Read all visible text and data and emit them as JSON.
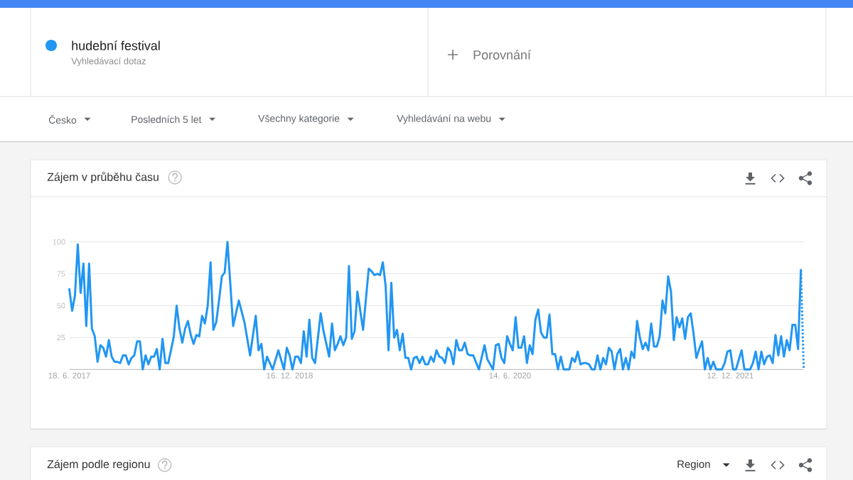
{
  "chart_data": {
    "type": "line",
    "title": "Zájem v průběhu času",
    "annotations": [
      "Vyhledávací dotaz",
      "Porovnání",
      "Česko",
      "Posledních 5 let",
      "Všechny kategorie",
      "Vyhledávání na webu",
      "Zájem podle regionu",
      "Region"
    ],
    "series": [
      {
        "name": "hudební festival",
        "color": "#2196f3",
        "x": [
          "2017-06-18",
          "2017-06-25",
          "2017-07-02",
          "2017-07-09",
          "2017-07-16",
          "2017-07-23",
          "2017-07-30",
          "2017-08-06",
          "2017-08-13",
          "2017-08-20",
          "2017-08-27",
          "2017-09-03",
          "2017-09-10",
          "2017-09-17",
          "2017-09-24",
          "2017-10-01",
          "2017-10-08",
          "2017-10-15",
          "2017-10-22",
          "2017-10-29",
          "2017-11-05",
          "2017-11-12",
          "2017-11-19",
          "2017-11-26",
          "2017-12-03",
          "2017-12-10",
          "2017-12-17",
          "2017-12-24",
          "2017-12-31",
          "2018-01-07",
          "2018-01-14",
          "2018-01-21",
          "2018-01-28",
          "2018-02-04",
          "2018-02-11",
          "2018-02-18",
          "2018-02-25",
          "2018-03-04",
          "2018-03-11",
          "2018-03-18",
          "2018-03-25",
          "2018-04-01",
          "2018-04-08",
          "2018-04-15",
          "2018-04-22",
          "2018-04-29",
          "2018-05-06",
          "2018-05-13",
          "2018-05-20",
          "2018-05-27",
          "2018-06-03",
          "2018-06-10",
          "2018-06-17",
          "2018-06-24",
          "2018-07-01",
          "2018-07-08",
          "2018-07-15",
          "2018-07-29",
          "2018-08-12",
          "2018-08-26",
          "2018-09-09",
          "2018-09-23",
          "2018-09-30",
          "2018-10-07",
          "2018-10-14",
          "2018-10-21",
          "2018-11-04",
          "2018-11-18",
          "2018-12-02",
          "2018-12-09",
          "2018-12-16",
          "2018-12-23",
          "2018-12-30",
          "2019-01-06",
          "2019-01-13",
          "2019-01-20",
          "2019-01-27",
          "2019-02-03",
          "2019-02-10",
          "2019-02-17",
          "2019-03-03",
          "2019-03-10",
          "2019-03-24",
          "2019-03-31",
          "2019-04-07",
          "2019-04-14",
          "2019-04-21",
          "2019-04-28",
          "2019-05-05",
          "2019-05-12",
          "2019-05-19",
          "2019-05-26",
          "2019-06-02",
          "2019-06-16",
          "2019-06-30",
          "2019-07-07",
          "2019-07-14",
          "2019-07-21",
          "2019-07-28",
          "2019-08-04",
          "2019-08-11",
          "2019-08-18",
          "2019-08-25",
          "2019-09-01",
          "2019-09-08",
          "2019-09-15",
          "2019-09-22",
          "2019-09-29",
          "2019-10-06",
          "2019-10-13",
          "2019-10-20",
          "2019-10-27",
          "2019-11-03",
          "2019-11-10",
          "2019-11-17",
          "2019-11-24",
          "2019-12-01",
          "2019-12-08",
          "2019-12-15",
          "2019-12-22",
          "2019-12-29",
          "2020-01-05",
          "2020-01-12",
          "2020-01-19",
          "2020-01-26",
          "2020-02-02",
          "2020-02-09",
          "2020-02-16",
          "2020-02-23",
          "2020-03-01",
          "2020-03-08",
          "2020-03-15",
          "2020-03-29",
          "2020-04-12",
          "2020-04-19",
          "2020-04-26",
          "2020-05-03",
          "2020-05-10",
          "2020-05-17",
          "2020-05-24",
          "2020-05-31",
          "2020-06-07",
          "2020-06-14",
          "2020-06-21",
          "2020-06-28",
          "2020-07-05",
          "2020-07-12",
          "2020-07-19",
          "2020-07-26",
          "2020-08-02",
          "2020-08-09",
          "2020-08-16",
          "2020-08-23",
          "2020-08-30",
          "2020-09-06",
          "2020-09-13",
          "2020-09-20",
          "2020-09-27",
          "2020-10-04",
          "2020-10-11",
          "2020-10-18",
          "2020-10-25",
          "2020-11-01",
          "2020-11-08",
          "2020-11-15",
          "2020-11-22",
          "2020-11-29",
          "2020-12-06",
          "2020-12-13",
          "2020-12-20",
          "2020-12-27",
          "2021-01-03",
          "2021-01-10",
          "2021-01-17",
          "2021-01-24",
          "2021-01-31",
          "2021-02-07",
          "2021-02-14",
          "2021-02-21",
          "2021-02-28",
          "2021-03-07",
          "2021-03-14",
          "2021-03-21",
          "2021-03-28",
          "2021-04-04",
          "2021-04-11",
          "2021-04-18",
          "2021-04-25",
          "2021-05-02",
          "2021-05-09",
          "2021-05-16",
          "2021-05-23",
          "2021-05-30",
          "2021-06-06",
          "2021-06-13",
          "2021-06-20",
          "2021-06-27",
          "2021-07-04",
          "2021-07-11",
          "2021-07-18",
          "2021-07-25",
          "2021-08-01",
          "2021-08-08",
          "2021-08-15",
          "2021-08-22",
          "2021-08-29",
          "2021-09-05",
          "2021-09-12",
          "2021-09-19",
          "2021-09-26",
          "2021-10-03",
          "2021-10-10",
          "2021-10-17",
          "2021-10-24",
          "2021-10-31",
          "2021-11-07",
          "2021-11-14",
          "2021-11-21",
          "2021-11-28",
          "2021-12-05",
          "2021-12-12",
          "2021-12-19",
          "2021-12-26",
          "2022-01-09",
          "2022-01-16",
          "2022-01-23",
          "2022-01-30",
          "2022-02-06",
          "2022-02-13",
          "2022-02-20",
          "2022-02-27",
          "2022-03-06",
          "2022-03-13",
          "2022-03-20",
          "2022-03-27",
          "2022-04-03",
          "2022-04-10",
          "2022-04-17",
          "2022-04-24",
          "2022-05-01",
          "2022-05-08",
          "2022-05-15",
          "2022-05-22",
          "2022-05-29",
          "2022-06-05"
        ],
        "values": [
          63,
          46,
          58,
          98,
          60,
          83,
          34,
          83,
          32,
          26,
          6,
          19,
          17,
          10,
          23,
          10,
          6,
          6,
          5,
          11,
          11,
          4,
          9,
          11,
          22,
          22,
          0,
          11,
          4,
          10,
          10,
          16,
          0,
          24,
          5,
          5,
          15,
          26,
          50,
          32,
          21,
          32,
          38,
          27,
          20,
          27,
          26,
          42,
          36,
          50,
          84,
          31,
          37,
          54,
          73,
          76,
          100,
          34,
          54,
          37,
          11,
          42,
          15,
          20,
          0,
          10,
          0,
          15,
          0,
          17,
          11,
          0,
          10,
          10,
          5,
          30,
          10,
          39,
          9,
          5,
          44,
          30,
          10,
          36,
          15,
          20,
          26,
          19,
          25,
          81,
          24,
          30,
          61,
          31,
          79,
          77,
          74,
          75,
          74,
          84,
          65,
          15,
          68,
          25,
          31,
          15,
          28,
          9,
          9,
          0,
          9,
          10,
          5,
          10,
          4,
          4,
          10,
          6,
          15,
          10,
          9,
          5,
          17,
          14,
          4,
          23,
          15,
          15,
          21,
          12,
          11,
          11,
          0,
          19,
          8,
          4,
          0,
          19,
          20,
          9,
          5,
          26,
          20,
          15,
          41,
          17,
          17,
          26,
          5,
          19,
          12,
          39,
          47,
          29,
          25,
          25,
          43,
          12,
          12,
          0,
          10,
          0,
          0,
          0,
          9,
          6,
          14,
          4,
          5,
          5,
          4,
          0,
          0,
          11,
          0,
          9,
          4,
          17,
          14,
          0,
          12,
          16,
          0,
          9,
          0,
          14,
          9,
          38,
          25,
          16,
          21,
          15,
          36,
          18,
          18,
          26,
          54,
          44,
          73,
          61,
          23,
          41,
          33,
          40,
          24,
          41,
          44,
          28,
          9,
          16,
          22,
          0,
          9,
          0,
          6,
          0,
          0,
          0,
          5,
          14,
          15,
          0,
          0,
          15,
          0,
          0,
          0,
          5,
          14,
          0,
          14,
          4,
          10,
          11,
          5,
          27,
          11,
          26,
          10,
          23,
          15,
          35,
          35,
          16,
          78
        ]
      },
      {
        "color": "#2196f3",
        "line_style": "dotted",
        "x": [
          "2022-06-05",
          "2022-06-12"
        ],
        "values": [
          78,
          0
        ]
      }
    ],
    "line_style": "solid",
    "xlim": [
      "2017-06-18",
      "2022-06-12"
    ],
    "xticks": [
      {
        "value": "2017-06-18",
        "label": "18. 6. 2017"
      },
      {
        "value": "2018-12-16",
        "label": "16. 12. 2018"
      },
      {
        "value": "2020-06-14",
        "label": "14. 6. 2020"
      },
      {
        "value": "2021-12-12",
        "label": "12. 12. 2021"
      }
    ],
    "ylim": [
      0,
      100
    ],
    "yticks": [
      25,
      50,
      75,
      100
    ],
    "grid": "y",
    "legend": "top left"
  }
}
